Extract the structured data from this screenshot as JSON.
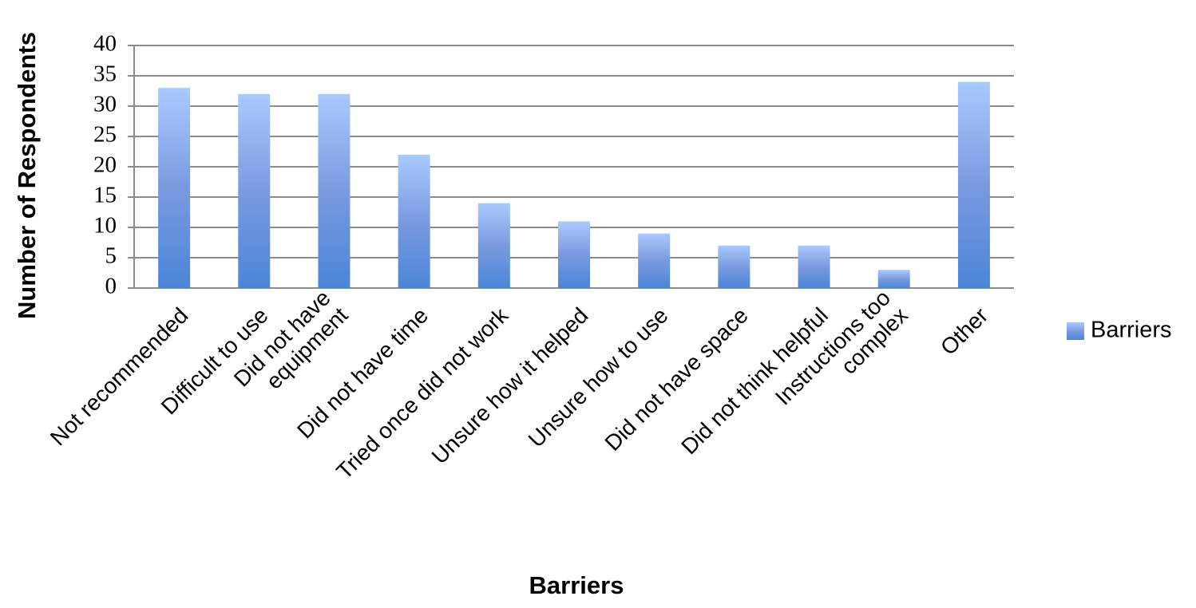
{
  "chart_data": {
    "type": "bar",
    "x_label": "Barriers",
    "y_label": "Number of Respondents",
    "categories": [
      "Not recommended",
      "Difficult to use",
      "Did not have\nequipment",
      "Did not have time",
      "Tried once did not work",
      "Unsure how it helped",
      "Unsure how to use",
      "Did not have space",
      "Did not think helpful",
      "Instructions too\ncomplex",
      "Other"
    ],
    "series": [
      {
        "name": "Barriers",
        "color": "#4a86d8",
        "values": [
          33,
          32,
          32,
          22,
          14,
          11,
          9,
          7,
          7,
          3,
          34
        ]
      }
    ],
    "ylim": [
      0,
      40
    ],
    "yticks": [
      0,
      5,
      10,
      15,
      20,
      25,
      30,
      35,
      40
    ],
    "grid": true,
    "legend": "right"
  }
}
